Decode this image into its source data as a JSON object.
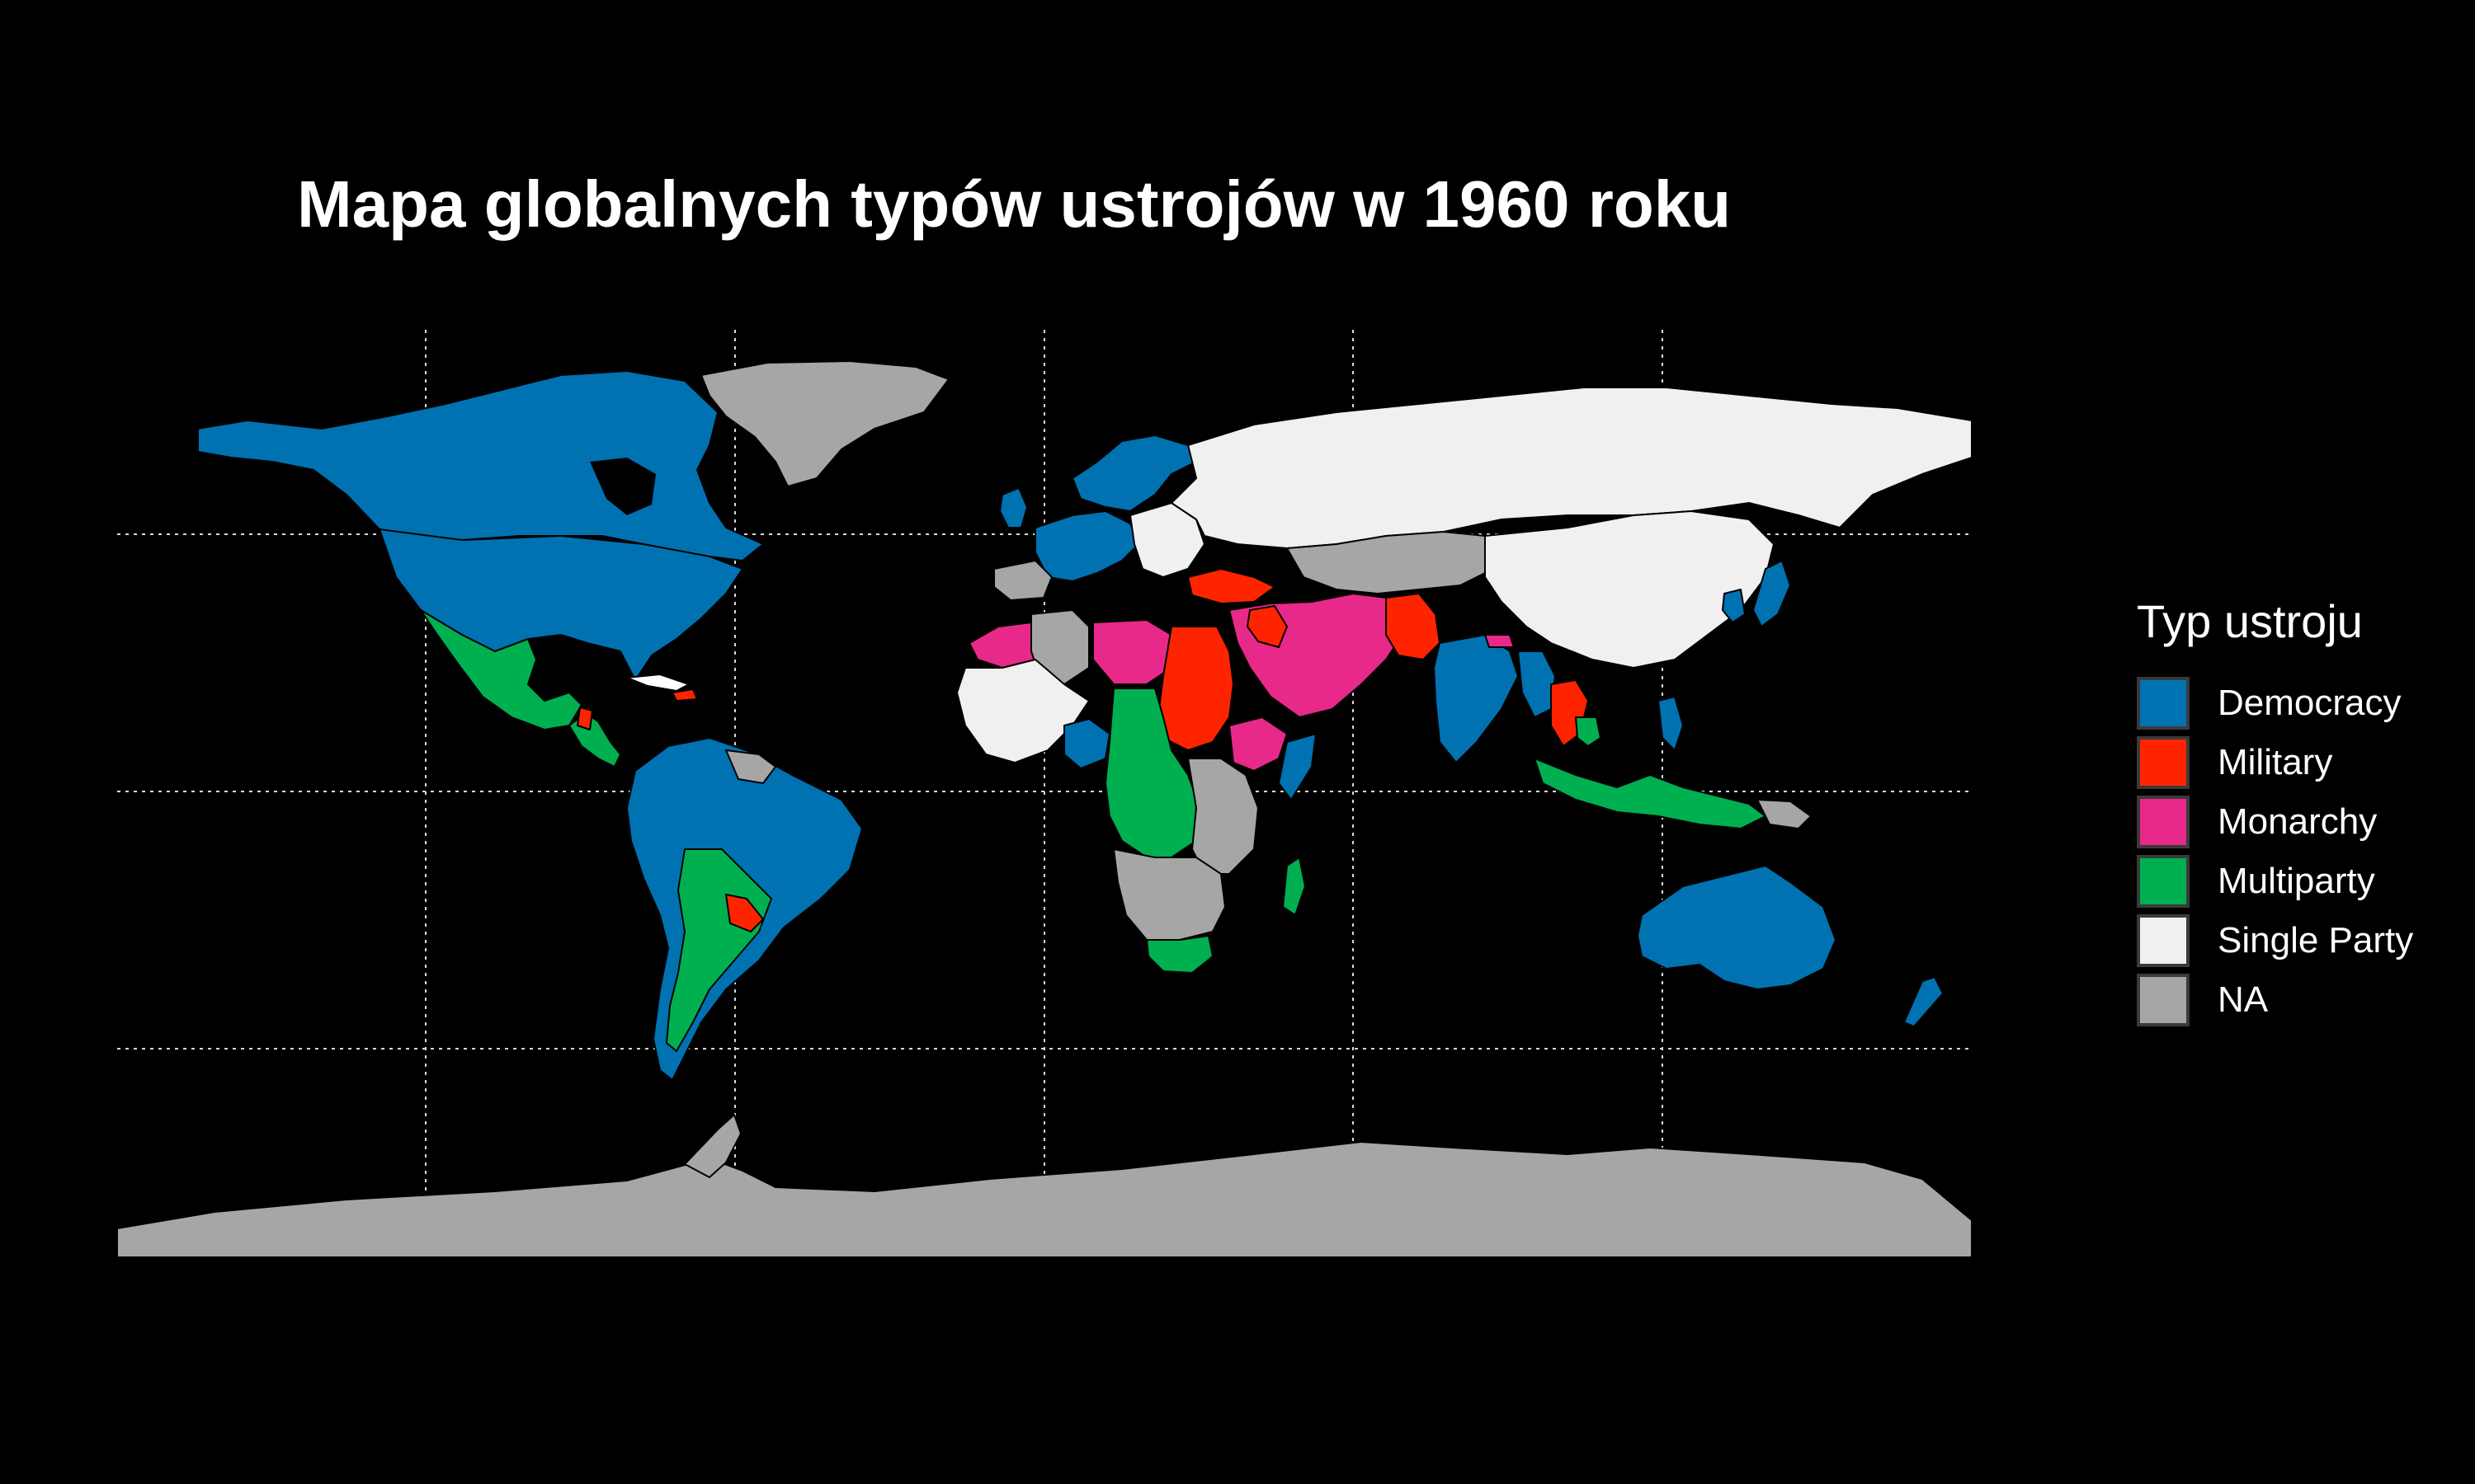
{
  "title": "Mapa globalnych typów ustrojów w 1960 roku",
  "legend": {
    "title": "Typ ustroju",
    "items": [
      {
        "label": "Democracy",
        "color": "#0072b2"
      },
      {
        "label": "Military",
        "color": "#ff2400"
      },
      {
        "label": "Monarchy",
        "color": "#e7298a"
      },
      {
        "label": "Multiparty",
        "color": "#00b050"
      },
      {
        "label": "Single Party",
        "color": "#f0f0f0"
      },
      {
        "label": "NA",
        "color": "#a6a6a6"
      }
    ]
  },
  "colors": {
    "background": "#000000",
    "grid": "#d9d9d9",
    "border": "#000000"
  }
}
